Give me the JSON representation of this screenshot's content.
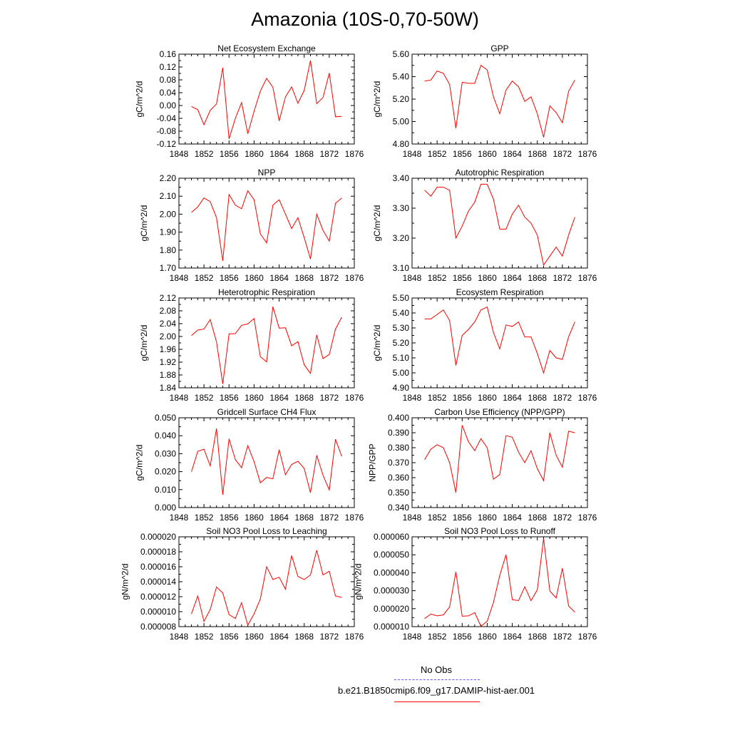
{
  "title": "Amazonia (10S-0,70-50W)",
  "legend": {
    "obs_label": "No Obs",
    "obs_color": "#5b5bff",
    "case_label": "b.e21.B1850cmip6.f09_g17.DAMIP-hist-aer.001",
    "case_color": "#ff0000"
  },
  "chart_data": [
    {
      "type": "line",
      "title": "Net Ecosystem Exchange",
      "ylabel": "gC/m^2/d",
      "xlim": [
        1848,
        1876
      ],
      "xticks": [
        "1848",
        "1852",
        "1856",
        "1860",
        "1864",
        "1868",
        "1872",
        "1876"
      ],
      "ylim": [
        -0.12,
        0.16
      ],
      "yticks": [
        "-0.12",
        "-0.08",
        "-0.04",
        "0.00",
        "0.04",
        "0.08",
        "0.12",
        "0.16"
      ],
      "x": [
        1850,
        1851,
        1852,
        1853,
        1854,
        1855,
        1856,
        1857,
        1858,
        1859,
        1860,
        1861,
        1862,
        1863,
        1864,
        1865,
        1866,
        1867,
        1868,
        1869,
        1870,
        1871,
        1872,
        1873,
        1874
      ],
      "series": [
        {
          "color": "#ff0000",
          "values": [
            -0.003,
            -0.013,
            -0.06,
            -0.015,
            0.005,
            0.118,
            -0.104,
            -0.04,
            0.009,
            -0.088,
            -0.018,
            0.045,
            0.085,
            0.057,
            -0.048,
            0.027,
            0.058,
            0.007,
            0.047,
            0.14,
            0.006,
            0.025,
            0.101,
            -0.035,
            -0.034
          ]
        }
      ]
    },
    {
      "type": "line",
      "title": "GPP",
      "ylabel": "gC/m^2/d",
      "xlim": [
        1848,
        1876
      ],
      "xticks": [
        "1848",
        "1852",
        "1856",
        "1860",
        "1864",
        "1868",
        "1872",
        "1876"
      ],
      "ylim": [
        4.8,
        5.6
      ],
      "yticks": [
        "4.80",
        "5.00",
        "5.20",
        "5.40",
        "5.60"
      ],
      "x": [
        1850,
        1851,
        1852,
        1853,
        1854,
        1855,
        1856,
        1857,
        1858,
        1859,
        1860,
        1861,
        1862,
        1863,
        1864,
        1865,
        1866,
        1867,
        1868,
        1869,
        1870,
        1871,
        1872,
        1873,
        1874
      ],
      "series": [
        {
          "color": "#ff0000",
          "values": [
            5.36,
            5.37,
            5.45,
            5.43,
            5.33,
            4.94,
            5.35,
            5.34,
            5.34,
            5.5,
            5.46,
            5.22,
            5.07,
            5.28,
            5.36,
            5.31,
            5.18,
            5.22,
            5.07,
            4.86,
            5.14,
            5.08,
            4.99,
            5.27,
            5.37
          ]
        }
      ]
    },
    {
      "type": "line",
      "title": "NPP",
      "ylabel": "gC/m^2/d",
      "xlim": [
        1848,
        1876
      ],
      "xticks": [
        "1848",
        "1852",
        "1856",
        "1860",
        "1864",
        "1868",
        "1872",
        "1876"
      ],
      "ylim": [
        1.7,
        2.2
      ],
      "yticks": [
        "1.70",
        "1.80",
        "1.90",
        "2.00",
        "2.10",
        "2.20"
      ],
      "x": [
        1850,
        1851,
        1852,
        1853,
        1854,
        1855,
        1856,
        1857,
        1858,
        1859,
        1860,
        1861,
        1862,
        1863,
        1864,
        1865,
        1866,
        1867,
        1868,
        1869,
        1870,
        1871,
        1872,
        1873,
        1874
      ],
      "series": [
        {
          "color": "#ff0000",
          "values": [
            2.01,
            2.04,
            2.09,
            2.07,
            1.98,
            1.74,
            2.11,
            2.05,
            2.03,
            2.13,
            2.08,
            1.89,
            1.84,
            2.05,
            2.08,
            2.0,
            1.92,
            1.98,
            1.87,
            1.75,
            2.0,
            1.91,
            1.85,
            2.06,
            2.09
          ]
        }
      ]
    },
    {
      "type": "line",
      "title": "Autotrophic Respiration",
      "ylabel": "gC/m^2/d",
      "xlim": [
        1848,
        1876
      ],
      "xticks": [
        "1848",
        "1852",
        "1856",
        "1860",
        "1864",
        "1868",
        "1872",
        "1876"
      ],
      "ylim": [
        3.1,
        3.4
      ],
      "yticks": [
        "3.10",
        "3.20",
        "3.30",
        "3.40"
      ],
      "x": [
        1850,
        1851,
        1852,
        1853,
        1854,
        1855,
        1856,
        1857,
        1858,
        1859,
        1860,
        1861,
        1862,
        1863,
        1864,
        1865,
        1866,
        1867,
        1868,
        1869,
        1870,
        1871,
        1872,
        1873,
        1874
      ],
      "series": [
        {
          "color": "#ff0000",
          "values": [
            3.36,
            3.34,
            3.37,
            3.37,
            3.36,
            3.2,
            3.24,
            3.29,
            3.32,
            3.38,
            3.38,
            3.33,
            3.23,
            3.23,
            3.28,
            3.31,
            3.27,
            3.25,
            3.21,
            3.11,
            3.14,
            3.17,
            3.14,
            3.21,
            3.27
          ]
        }
      ]
    },
    {
      "type": "line",
      "title": "Heterotrophic Respiration",
      "ylabel": "gC/m^2/d",
      "xlim": [
        1848,
        1876
      ],
      "xticks": [
        "1848",
        "1852",
        "1856",
        "1860",
        "1864",
        "1868",
        "1872",
        "1876"
      ],
      "ylim": [
        1.84,
        2.12
      ],
      "yticks": [
        "1.84",
        "1.88",
        "1.92",
        "1.96",
        "2.00",
        "2.04",
        "2.08",
        "2.12"
      ],
      "x": [
        1850,
        1851,
        1852,
        1853,
        1854,
        1855,
        1856,
        1857,
        1858,
        1859,
        1860,
        1861,
        1862,
        1863,
        1864,
        1865,
        1866,
        1867,
        1868,
        1869,
        1870,
        1871,
        1872,
        1873,
        1874
      ],
      "series": [
        {
          "color": "#ff0000",
          "values": [
            2.003,
            2.02,
            2.023,
            2.053,
            1.983,
            1.852,
            2.008,
            2.009,
            2.035,
            2.039,
            2.056,
            1.937,
            1.921,
            2.093,
            2.026,
            2.027,
            1.971,
            1.984,
            1.912,
            1.885,
            2.005,
            1.931,
            1.944,
            2.023,
            2.06
          ]
        }
      ]
    },
    {
      "type": "line",
      "title": "Ecosystem Respiration",
      "ylabel": "gC/m^2/d",
      "xlim": [
        1848,
        1876
      ],
      "xticks": [
        "1848",
        "1852",
        "1856",
        "1860",
        "1864",
        "1868",
        "1872",
        "1876"
      ],
      "ylim": [
        4.9,
        5.5
      ],
      "yticks": [
        "4.90",
        "5.00",
        "5.10",
        "5.20",
        "5.30",
        "5.40",
        "5.50"
      ],
      "x": [
        1850,
        1851,
        1852,
        1853,
        1854,
        1855,
        1856,
        1857,
        1858,
        1859,
        1860,
        1861,
        1862,
        1863,
        1864,
        1865,
        1866,
        1867,
        1868,
        1869,
        1870,
        1871,
        1872,
        1873,
        1874
      ],
      "series": [
        {
          "color": "#ff0000",
          "values": [
            5.36,
            5.36,
            5.39,
            5.42,
            5.35,
            5.05,
            5.25,
            5.29,
            5.34,
            5.42,
            5.44,
            5.27,
            5.16,
            5.32,
            5.31,
            5.34,
            5.24,
            5.24,
            5.13,
            5.0,
            5.15,
            5.1,
            5.09,
            5.24,
            5.34
          ]
        }
      ]
    },
    {
      "type": "line",
      "title": "Gridcell Surface CH4 Flux",
      "ylabel": "gC/m^2/d",
      "xlim": [
        1848,
        1876
      ],
      "xticks": [
        "1848",
        "1852",
        "1856",
        "1860",
        "1864",
        "1868",
        "1872",
        "1876"
      ],
      "ylim": [
        0.0,
        0.05
      ],
      "yticks": [
        "0.000",
        "0.010",
        "0.020",
        "0.030",
        "0.040",
        "0.050"
      ],
      "x": [
        1850,
        1851,
        1852,
        1853,
        1854,
        1855,
        1856,
        1857,
        1858,
        1859,
        1860,
        1861,
        1862,
        1863,
        1864,
        1865,
        1866,
        1867,
        1868,
        1869,
        1870,
        1871,
        1872,
        1873,
        1874
      ],
      "series": [
        {
          "color": "#ff0000",
          "values": [
            0.02,
            0.0313,
            0.0325,
            0.0232,
            0.044,
            0.0072,
            0.0383,
            0.0267,
            0.0222,
            0.0345,
            0.0256,
            0.0138,
            0.0168,
            0.016,
            0.0322,
            0.0183,
            0.024,
            0.0258,
            0.0218,
            0.0083,
            0.0291,
            0.018,
            0.0098,
            0.038,
            0.0285
          ]
        }
      ]
    },
    {
      "type": "line",
      "title": "Carbon Use Efficiency (NPP/GPP)",
      "ylabel": "NPP/GPP",
      "xlim": [
        1848,
        1876
      ],
      "xticks": [
        "1848",
        "1852",
        "1856",
        "1860",
        "1864",
        "1868",
        "1872",
        "1876"
      ],
      "ylim": [
        0.34,
        0.4
      ],
      "yticks": [
        "0.340",
        "0.350",
        "0.360",
        "0.370",
        "0.380",
        "0.390",
        "0.400"
      ],
      "x": [
        1850,
        1851,
        1852,
        1853,
        1854,
        1855,
        1856,
        1857,
        1858,
        1859,
        1860,
        1861,
        1862,
        1863,
        1864,
        1865,
        1866,
        1867,
        1868,
        1869,
        1870,
        1871,
        1872,
        1873,
        1874
      ],
      "series": [
        {
          "color": "#ff0000",
          "values": [
            0.372,
            0.379,
            0.382,
            0.38,
            0.37,
            0.35,
            0.395,
            0.384,
            0.378,
            0.386,
            0.38,
            0.359,
            0.362,
            0.388,
            0.387,
            0.377,
            0.37,
            0.378,
            0.366,
            0.358,
            0.39,
            0.375,
            0.367,
            0.391,
            0.39
          ]
        }
      ]
    },
    {
      "type": "line",
      "title": "Soil NO3 Pool Loss to Leaching",
      "ylabel": "gN/m^2/d",
      "xlim": [
        1848,
        1876
      ],
      "xticks": [
        "1848",
        "1852",
        "1856",
        "1860",
        "1864",
        "1868",
        "1872",
        "1876"
      ],
      "ylim": [
        8e-06,
        2e-05
      ],
      "yticks": [
        "0.000008",
        "0.000010",
        "0.000012",
        "0.000014",
        "0.000016",
        "0.000018",
        "0.000020"
      ],
      "x": [
        1850,
        1851,
        1852,
        1853,
        1854,
        1855,
        1856,
        1857,
        1858,
        1859,
        1860,
        1861,
        1862,
        1863,
        1864,
        1865,
        1866,
        1867,
        1868,
        1869,
        1870,
        1871,
        1872,
        1873,
        1874
      ],
      "series": [
        {
          "color": "#ff0000",
          "values": [
            9.7e-06,
            1.21e-05,
            8.7e-06,
            1.03e-05,
            1.33e-05,
            1.25e-05,
            9.6e-06,
            9.1e-06,
            1.12e-05,
            8.2e-06,
            9.7e-06,
            1.17e-05,
            1.6e-05,
            1.43e-05,
            1.46e-05,
            1.3e-05,
            1.75e-05,
            1.47e-05,
            1.43e-05,
            1.49e-05,
            1.82e-05,
            1.49e-05,
            1.54e-05,
            1.21e-05,
            1.19e-05
          ]
        }
      ]
    },
    {
      "type": "line",
      "title": "Soil NO3 Pool Loss to Runoff",
      "ylabel": "gN/m^2/d",
      "xlim": [
        1848,
        1876
      ],
      "xticks": [
        "1848",
        "1852",
        "1856",
        "1860",
        "1864",
        "1868",
        "1872",
        "1876"
      ],
      "ylim": [
        1e-05,
        6e-05
      ],
      "yticks": [
        "0.000010",
        "0.000020",
        "0.000030",
        "0.000040",
        "0.000050",
        "0.000060"
      ],
      "x": [
        1850,
        1851,
        1852,
        1853,
        1854,
        1855,
        1856,
        1857,
        1858,
        1859,
        1860,
        1861,
        1862,
        1863,
        1864,
        1865,
        1866,
        1867,
        1868,
        1869,
        1870,
        1871,
        1872,
        1873,
        1874
      ],
      "series": [
        {
          "color": "#ff0000",
          "values": [
            1.45e-05,
            1.7e-05,
            1.6e-05,
            1.65e-05,
            2.1e-05,
            4.05e-05,
            1.58e-05,
            1.6e-05,
            1.78e-05,
            1.02e-05,
            1.3e-05,
            2.35e-05,
            3.85e-05,
            5e-05,
            2.5e-05,
            2.45e-05,
            3.22e-05,
            2.45e-05,
            3.05e-05,
            5.9e-05,
            2.98e-05,
            2.6e-05,
            4.25e-05,
            2.15e-05,
            1.8e-05
          ]
        }
      ]
    }
  ]
}
